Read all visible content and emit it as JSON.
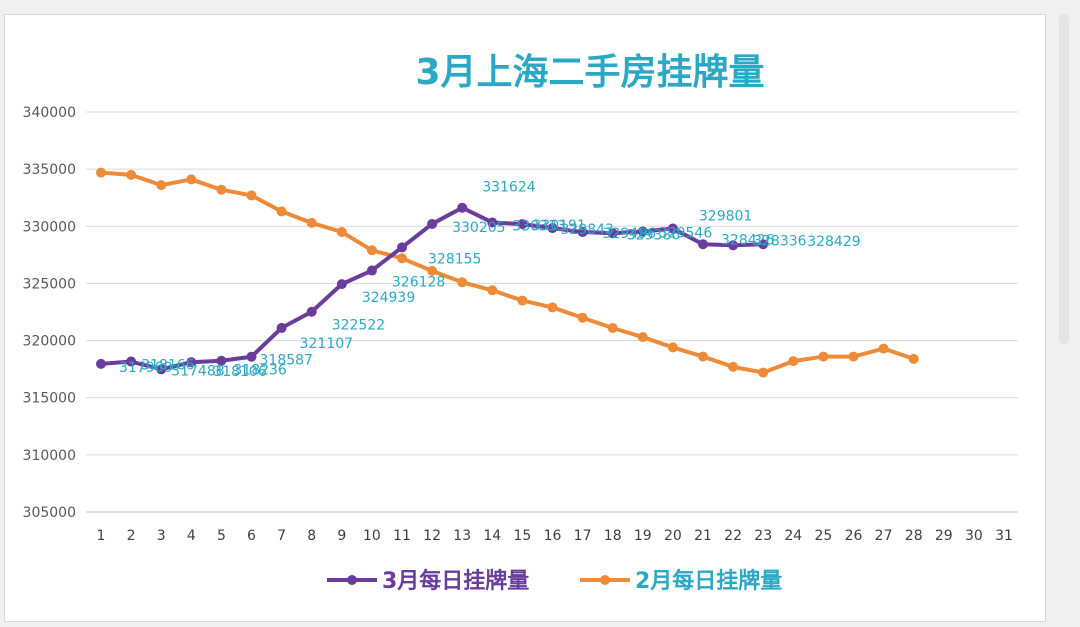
{
  "chart_data": {
    "type": "line",
    "title": "3月上海二手房挂牌量",
    "xlabel": "",
    "ylabel": "",
    "ylim": [
      305000,
      340000
    ],
    "yticks": [
      305000,
      310000,
      315000,
      320000,
      325000,
      330000,
      335000,
      340000
    ],
    "yticklabels": [
      "305000",
      "310000",
      "315000",
      "320000",
      "325000",
      "330000",
      "335000",
      "340000"
    ],
    "categories": [
      "1",
      "2",
      "3",
      "4",
      "5",
      "6",
      "7",
      "8",
      "9",
      "10",
      "11",
      "12",
      "13",
      "14",
      "15",
      "16",
      "17",
      "18",
      "19",
      "20",
      "21",
      "22",
      "23",
      "24",
      "25",
      "26",
      "27",
      "28",
      "29",
      "30",
      "31"
    ],
    "grid": true,
    "legend_position": "bottom",
    "series": [
      {
        "name": "3月每日挂牌量",
        "color": "#6a3c9c",
        "label_color": "#2aa8c4",
        "values": [
          317960,
          318166,
          317488,
          318106,
          318236,
          318587,
          321107,
          322522,
          324939,
          326128,
          328155,
          330205,
          331624,
          330333,
          330191,
          329843,
          329496,
          329386,
          329546,
          329801,
          328426,
          328336,
          328429,
          null,
          null,
          null,
          null,
          null,
          null,
          null,
          null
        ],
        "data_labels": [
          "317960",
          "318166",
          "317488",
          "318106",
          "318236",
          "318587",
          "321107",
          "322522",
          "324939",
          "326128",
          "328155",
          "330205",
          "331624",
          "330333",
          "330191",
          "329843",
          "329496",
          "329386",
          "329546",
          "329801",
          "328426",
          "328336",
          "328429",
          null,
          null,
          null,
          null,
          null,
          null,
          null,
          null
        ]
      },
      {
        "name": "2月每日挂牌量",
        "color": "#ed8b38",
        "values": [
          334700,
          334500,
          333600,
          334100,
          333200,
          332700,
          331300,
          330300,
          329500,
          327900,
          327200,
          326100,
          325100,
          324400,
          323500,
          322900,
          322000,
          321100,
          320300,
          319400,
          318600,
          317700,
          317200,
          318200,
          318600,
          318600,
          319300,
          318400,
          null,
          null,
          null
        ]
      }
    ]
  }
}
